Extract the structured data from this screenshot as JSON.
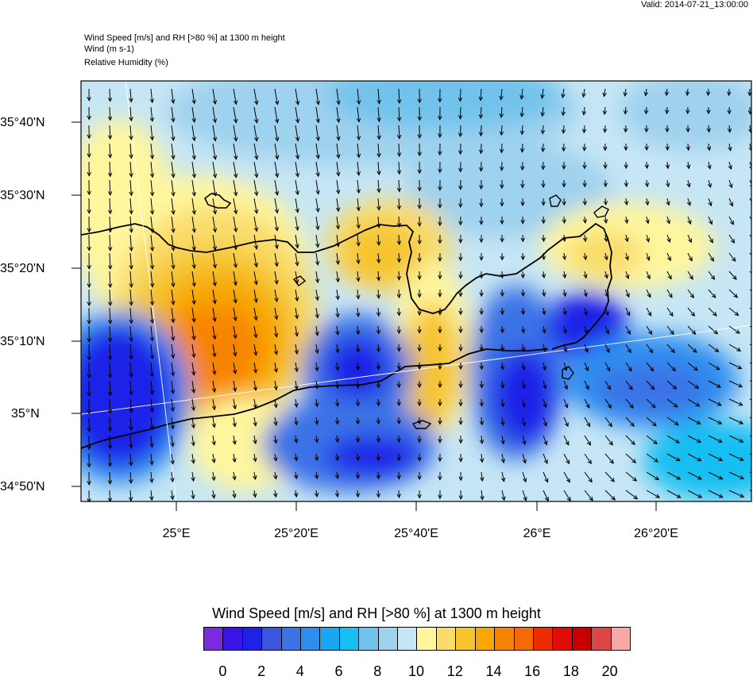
{
  "valid_label": "Valid: 2014-07-21_13:00:00",
  "header_lines": [
    "Wind Speed [m/s] and RH [>80 %] at 1300 m height",
    "Wind   (m s-1)",
    "Relative Humidity   (%)"
  ],
  "lat_labels": [
    "35°40'N",
    "35°30'N",
    "35°20'N",
    "35°10'N",
    "35°N",
    "34°50'N"
  ],
  "lon_labels": [
    "25°E",
    "25°20'E",
    "25°40'E",
    "26°E",
    "26°20'E"
  ],
  "colorbar": {
    "title": "Wind Speed [m/s] and RH [>80 %] at 1300 m height",
    "tick_labels": [
      "0",
      "2",
      "4",
      "6",
      "8",
      "10",
      "12",
      "14",
      "16",
      "18",
      "20"
    ],
    "colors": [
      "#7a2be0",
      "#3a14e6",
      "#1e22e8",
      "#3a56de",
      "#3b72e6",
      "#2d8ef0",
      "#1aa6f2",
      "#18bff2",
      "#72c3ec",
      "#9fd2ee",
      "#c6e6f5",
      "#fff69e",
      "#f9dc6b",
      "#f6c52e",
      "#f7a700",
      "#f78400",
      "#f46a06",
      "#ef2c00",
      "#e30a0a",
      "#c80000",
      "#dc4646",
      "#f7a8a8"
    ]
  },
  "colors": {
    "coast": "#000000",
    "arrow": "#000000",
    "grid_line": "#ffffff"
  }
}
